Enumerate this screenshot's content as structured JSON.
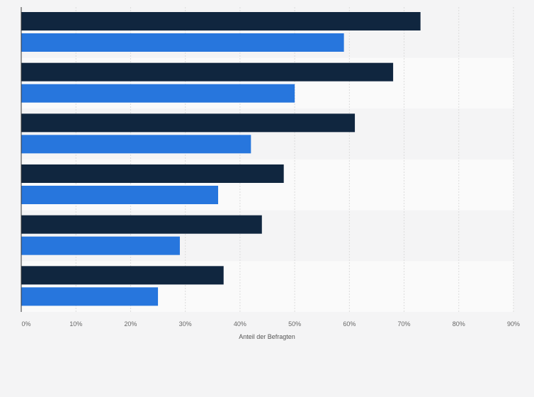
{
  "chart_data": {
    "type": "bar",
    "orientation": "horizontal",
    "categories": [
      "",
      "",
      "",
      "",
      "",
      ""
    ],
    "series": [
      {
        "values": [
          73,
          68,
          61,
          48,
          44,
          37
        ],
        "color": "#10263f"
      },
      {
        "values": [
          59,
          50,
          42,
          36,
          29,
          25
        ],
        "color": "#2776dd"
      }
    ],
    "x_ticks": [
      "0%",
      "10%",
      "20%",
      "30%",
      "40%",
      "50%",
      "60%",
      "70%",
      "80%",
      "90%"
    ],
    "xlim": [
      0,
      90
    ],
    "xlabel": "Anteil der Befragten",
    "grid": true,
    "legend": "none"
  }
}
